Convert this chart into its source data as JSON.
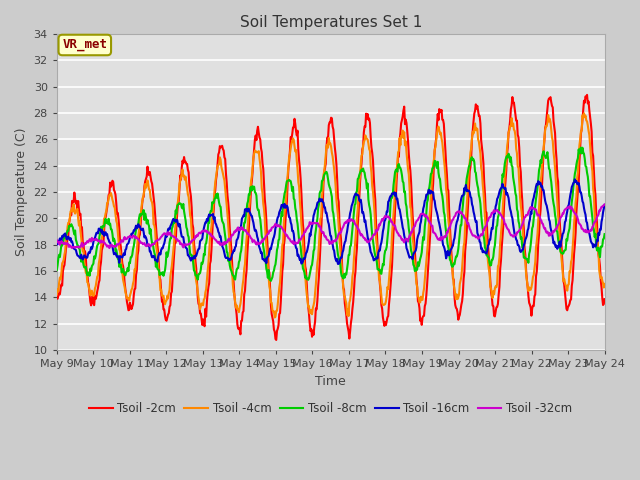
{
  "title": "Soil Temperatures Set 1",
  "xlabel": "Time",
  "ylabel": "Soil Temperature (C)",
  "ylim": [
    10,
    34
  ],
  "yticks": [
    10,
    12,
    14,
    16,
    18,
    20,
    22,
    24,
    26,
    28,
    30,
    32,
    34
  ],
  "xtick_labels": [
    "May 9",
    "May 10",
    "May 11",
    "May 12",
    "May 13",
    "May 14",
    "May 15",
    "May 16",
    "May 17",
    "May 18",
    "May 19",
    "May 20",
    "May 21",
    "May 22",
    "May 23",
    "May 24"
  ],
  "series": [
    {
      "label": "Tsoil -2cm",
      "color": "#ff0000"
    },
    {
      "label": "Tsoil -4cm",
      "color": "#ff8800"
    },
    {
      "label": "Tsoil -8cm",
      "color": "#00cc00"
    },
    {
      "label": "Tsoil -16cm",
      "color": "#0000cc"
    },
    {
      "label": "Tsoil -32cm",
      "color": "#cc00cc"
    }
  ],
  "annotation_text": "VR_met",
  "linewidth": 1.5,
  "fig_bg": "#cccccc",
  "axes_bg": "#e0e0e0",
  "grid_color": "#ffffff",
  "title_fontsize": 11,
  "tick_fontsize": 8,
  "label_fontsize": 9
}
